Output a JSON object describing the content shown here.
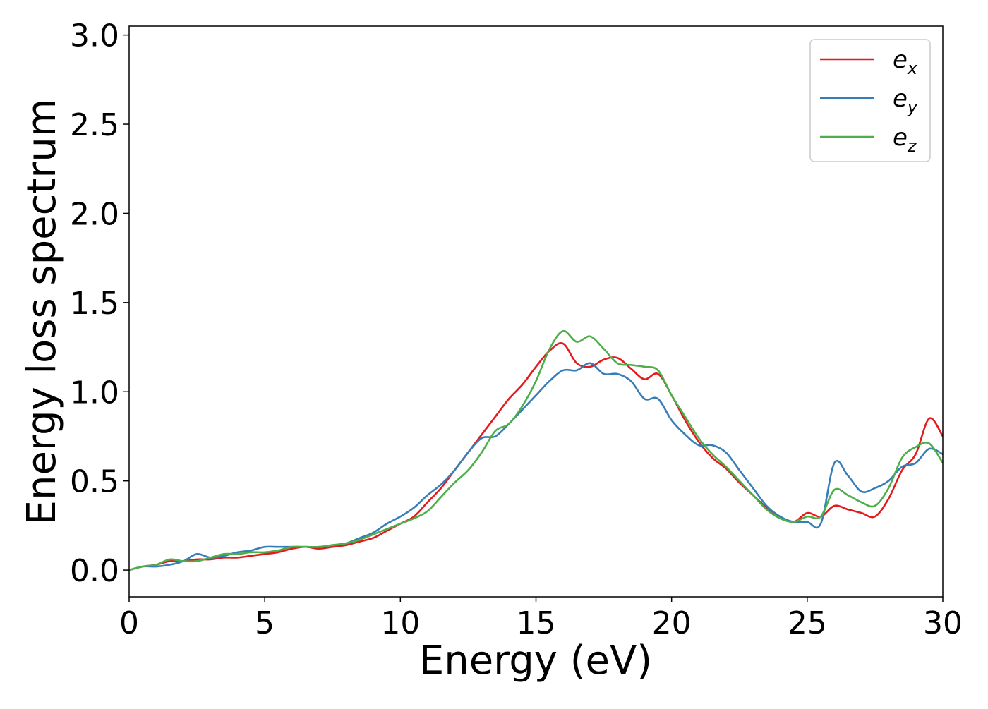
{
  "chart_data": {
    "type": "line",
    "xlabel": "Energy (eV)",
    "ylabel": "Energy loss spectrum",
    "xlim": [
      0,
      30
    ],
    "ylim": [
      -0.15,
      3.05
    ],
    "xticks": [
      0,
      5,
      10,
      15,
      20,
      25,
      30
    ],
    "xtick_labels": [
      "0",
      "5",
      "10",
      "15",
      "20",
      "25",
      "30"
    ],
    "yticks": [
      0.0,
      0.5,
      1.0,
      1.5,
      2.0,
      2.5,
      3.0
    ],
    "ytick_labels": [
      "0.0",
      "0.5",
      "1.0",
      "1.5",
      "2.0",
      "2.5",
      "3.0"
    ],
    "grid": false,
    "legend_position": "top-right",
    "series": [
      {
        "name": "e",
        "subscript": "x",
        "color": "#e41a1c",
        "x": [
          0,
          0.5,
          1,
          1.5,
          2,
          2.5,
          3,
          3.5,
          4,
          4.5,
          5,
          5.5,
          6,
          6.5,
          7,
          7.5,
          8,
          8.5,
          9,
          9.5,
          10,
          10.5,
          11,
          11.5,
          12,
          12.5,
          13,
          13.5,
          14,
          14.5,
          15,
          15.5,
          16,
          16.5,
          17,
          17.5,
          18,
          18.5,
          19,
          19.5,
          20,
          20.5,
          21,
          21.5,
          22,
          22.5,
          23,
          23.5,
          24,
          24.5,
          25,
          25.5,
          26,
          26.5,
          27,
          27.5,
          28,
          28.5,
          29,
          29.5,
          30
        ],
        "y": [
          0.0,
          0.02,
          0.03,
          0.05,
          0.05,
          0.06,
          0.06,
          0.07,
          0.07,
          0.08,
          0.09,
          0.1,
          0.12,
          0.13,
          0.12,
          0.13,
          0.14,
          0.16,
          0.18,
          0.22,
          0.26,
          0.3,
          0.38,
          0.46,
          0.56,
          0.66,
          0.76,
          0.86,
          0.96,
          1.04,
          1.14,
          1.23,
          1.27,
          1.16,
          1.14,
          1.18,
          1.19,
          1.13,
          1.07,
          1.1,
          0.98,
          0.84,
          0.72,
          0.63,
          0.57,
          0.49,
          0.42,
          0.35,
          0.3,
          0.27,
          0.32,
          0.3,
          0.36,
          0.34,
          0.32,
          0.3,
          0.4,
          0.56,
          0.65,
          0.85,
          0.75
        ]
      },
      {
        "name": "e",
        "subscript": "y",
        "color": "#377eb8",
        "x": [
          0,
          0.5,
          1,
          1.5,
          2,
          2.5,
          3,
          3.5,
          4,
          4.5,
          5,
          5.5,
          6,
          6.5,
          7,
          7.5,
          8,
          8.5,
          9,
          9.5,
          10,
          10.5,
          11,
          11.5,
          12,
          12.5,
          13,
          13.5,
          14,
          14.5,
          15,
          15.5,
          16,
          16.5,
          17,
          17.5,
          18,
          18.5,
          19,
          19.5,
          20,
          20.5,
          21,
          21.5,
          22,
          22.5,
          23,
          23.5,
          24,
          24.5,
          25,
          25.5,
          26,
          26.5,
          27,
          27.5,
          28,
          28.5,
          29,
          29.5,
          30
        ],
        "y": [
          0.0,
          0.02,
          0.02,
          0.03,
          0.05,
          0.09,
          0.07,
          0.08,
          0.1,
          0.11,
          0.13,
          0.13,
          0.13,
          0.13,
          0.13,
          0.14,
          0.15,
          0.18,
          0.21,
          0.26,
          0.3,
          0.35,
          0.42,
          0.48,
          0.56,
          0.66,
          0.74,
          0.75,
          0.82,
          0.9,
          0.98,
          1.06,
          1.12,
          1.12,
          1.16,
          1.1,
          1.1,
          1.06,
          0.96,
          0.96,
          0.84,
          0.76,
          0.7,
          0.7,
          0.66,
          0.56,
          0.46,
          0.36,
          0.3,
          0.27,
          0.27,
          0.26,
          0.6,
          0.53,
          0.44,
          0.46,
          0.5,
          0.58,
          0.6,
          0.68,
          0.65
        ]
      },
      {
        "name": "e",
        "subscript": "z",
        "color": "#4daf4a",
        "x": [
          0,
          0.5,
          1,
          1.5,
          2,
          2.5,
          3,
          3.5,
          4,
          4.5,
          5,
          5.5,
          6,
          6.5,
          7,
          7.5,
          8,
          8.5,
          9,
          9.5,
          10,
          10.5,
          11,
          11.5,
          12,
          12.5,
          13,
          13.5,
          14,
          14.5,
          15,
          15.5,
          16,
          16.5,
          17,
          17.5,
          18,
          18.5,
          19,
          19.5,
          20,
          20.5,
          21,
          21.5,
          22,
          22.5,
          23,
          23.5,
          24,
          24.5,
          25,
          25.5,
          26,
          26.5,
          27,
          27.5,
          28,
          28.5,
          29,
          29.5,
          30
        ],
        "y": [
          0.0,
          0.02,
          0.03,
          0.06,
          0.05,
          0.05,
          0.07,
          0.09,
          0.09,
          0.1,
          0.1,
          0.11,
          0.13,
          0.13,
          0.13,
          0.14,
          0.15,
          0.17,
          0.2,
          0.23,
          0.26,
          0.29,
          0.33,
          0.41,
          0.49,
          0.56,
          0.66,
          0.78,
          0.82,
          0.92,
          1.06,
          1.24,
          1.34,
          1.28,
          1.31,
          1.24,
          1.16,
          1.15,
          1.14,
          1.12,
          0.98,
          0.86,
          0.74,
          0.65,
          0.58,
          0.5,
          0.42,
          0.34,
          0.29,
          0.27,
          0.3,
          0.3,
          0.45,
          0.42,
          0.38,
          0.36,
          0.46,
          0.63,
          0.69,
          0.71,
          0.6
        ]
      }
    ]
  }
}
